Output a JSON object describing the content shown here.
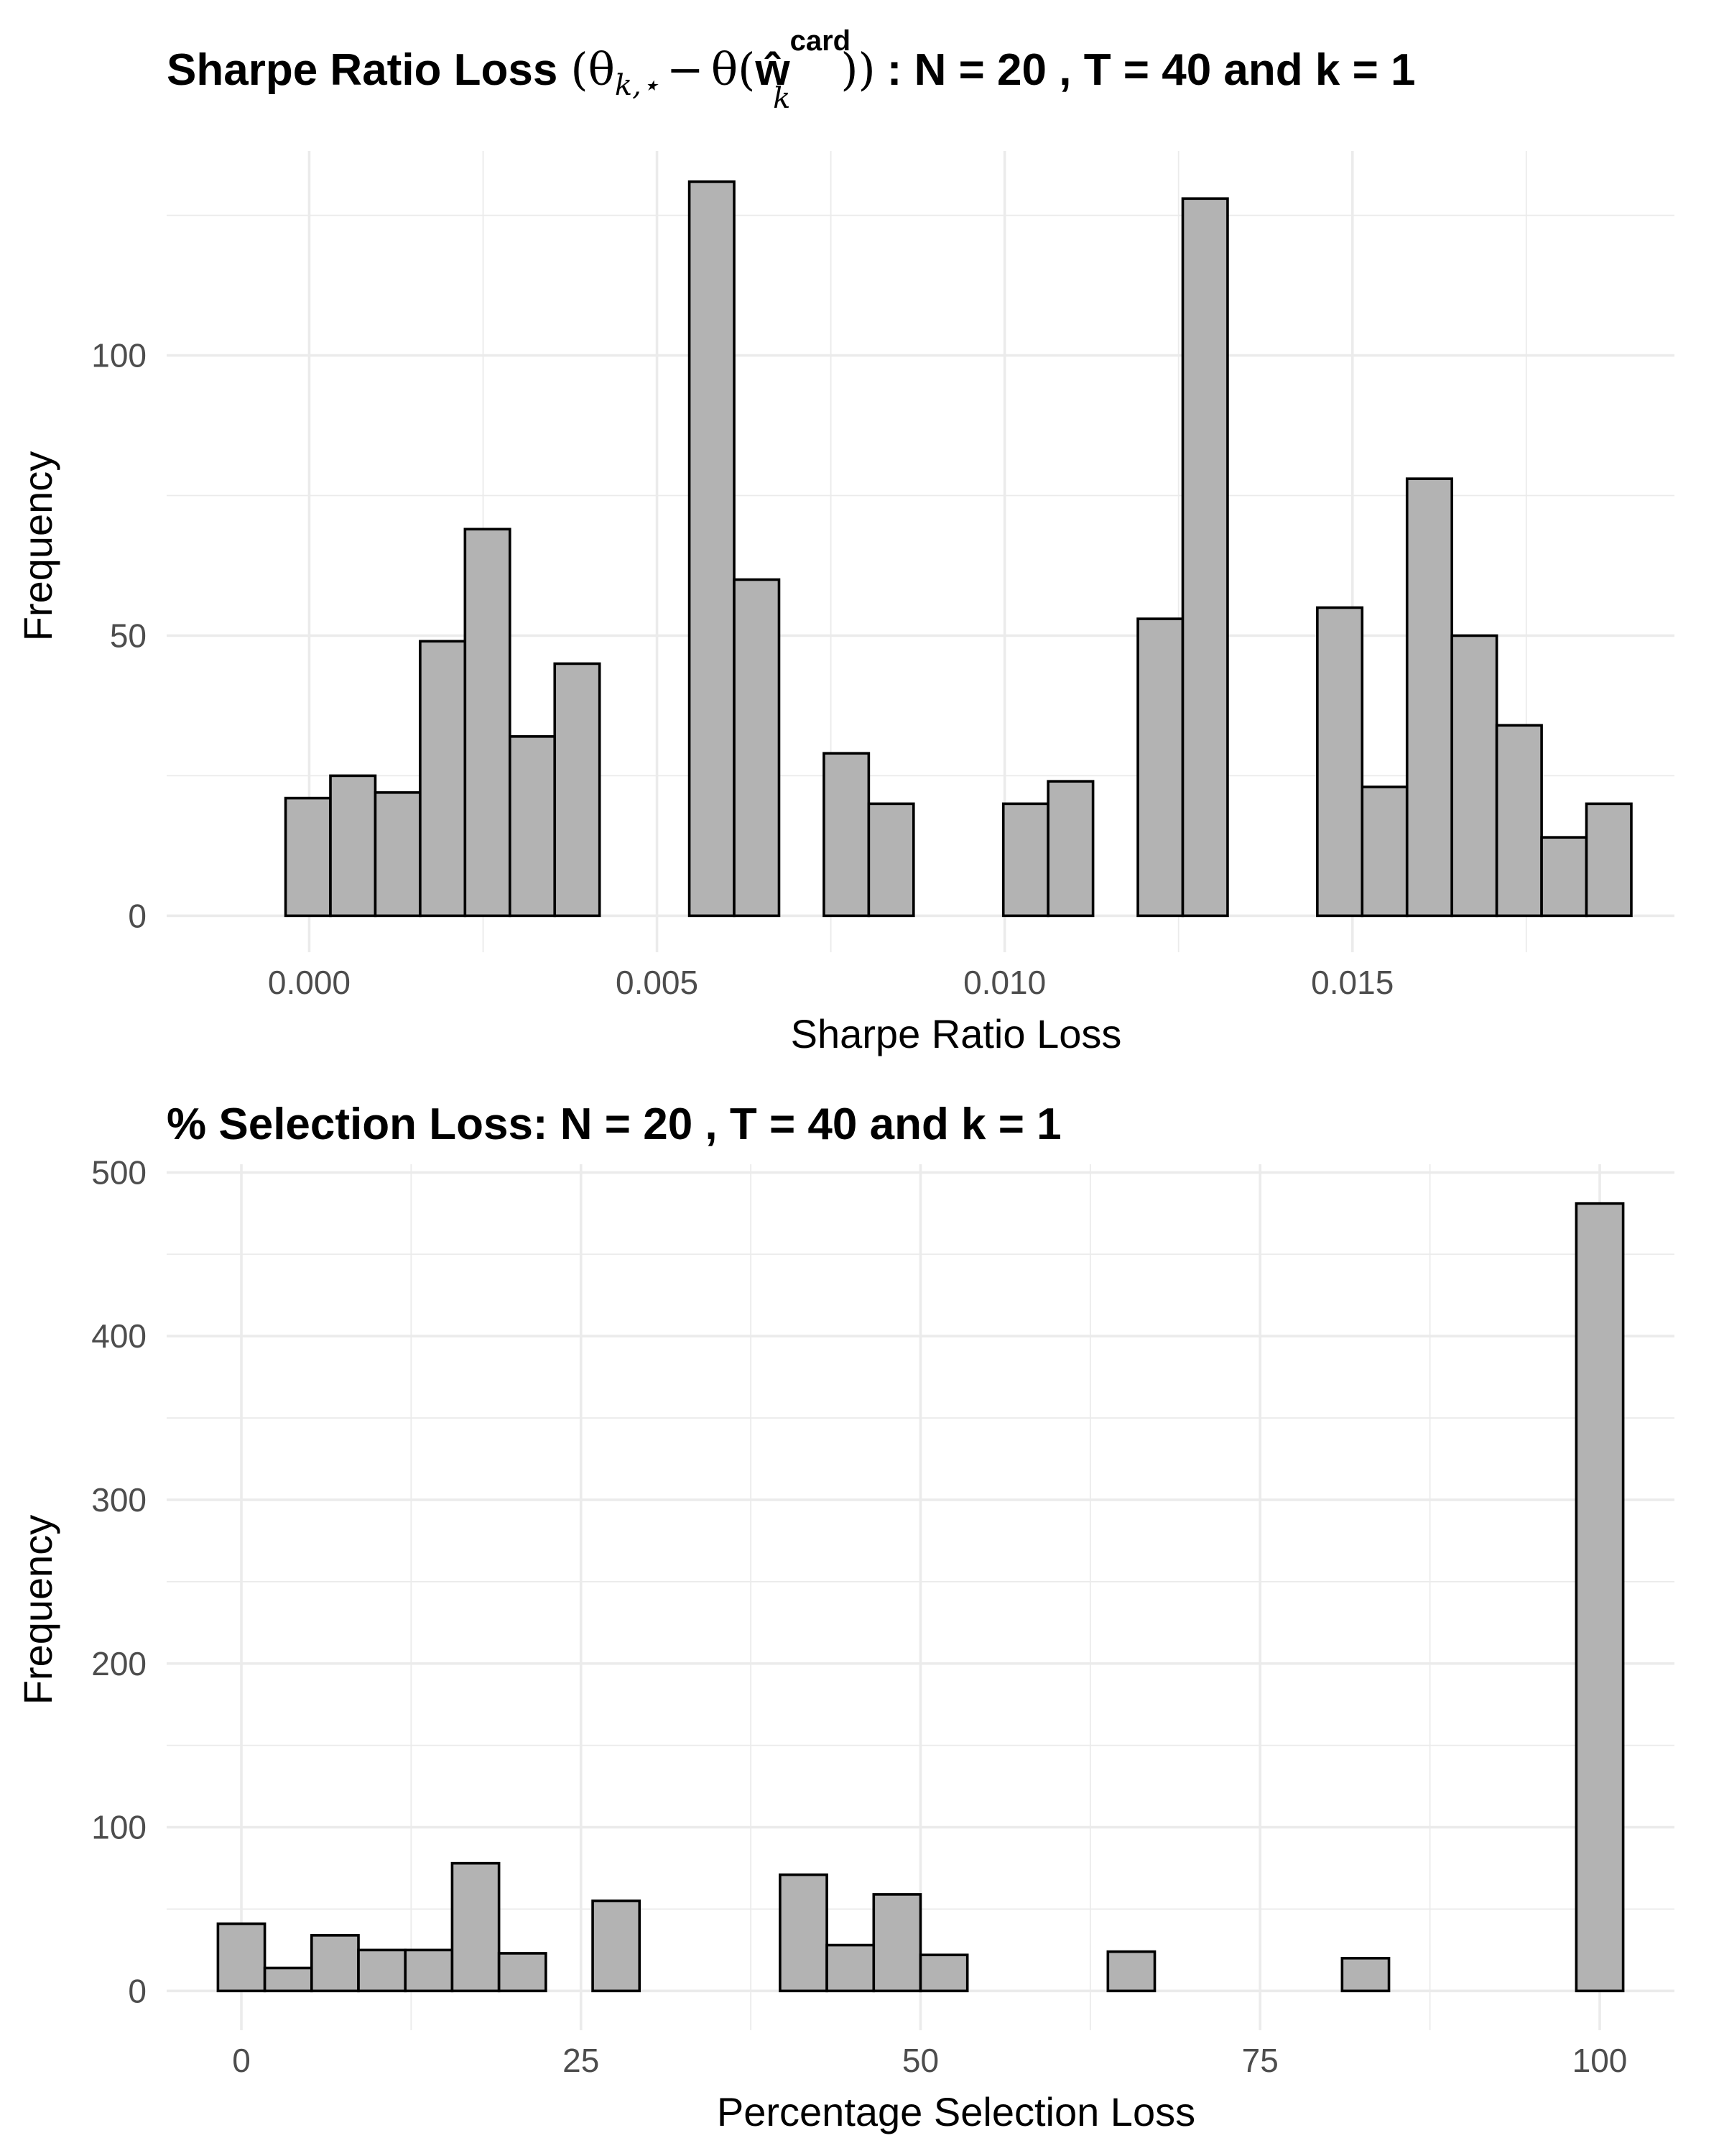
{
  "chart_data": [
    {
      "type": "bar",
      "title_parts": {
        "prefix": "Sharpe Ratio Loss",
        "theta1": "θ",
        "sub1": "k,⋆",
        "minus": "−",
        "theta2": "θ",
        "hat_w": "ŵ",
        "sup": "card",
        "sub2": "k",
        "suffix": ": N = 20 , T = 40  and k = 1"
      },
      "xlabel": "Sharpe Ratio Loss",
      "ylabel": "Frequency",
      "xlim": [
        -0.00205,
        0.01963
      ],
      "ylim": [
        -6.5,
        136.5
      ],
      "x_ticks": [
        0.0,
        0.005,
        0.01,
        0.015
      ],
      "x_tick_labels": [
        "0.000",
        "0.005",
        "0.010",
        "0.015"
      ],
      "y_ticks": [
        0,
        50,
        100
      ],
      "y_tick_labels": [
        "0",
        "50",
        "100"
      ],
      "bin_width": 0.000645,
      "bin_starts": [
        -0.00034,
        0.000305,
        0.00095,
        0.001595,
        0.00224,
        0.002885,
        0.00353,
        0.004175,
        0.00482,
        0.005465,
        0.00611,
        0.006755,
        0.0074,
        0.008045,
        0.00869,
        0.009335,
        0.00998,
        0.010625,
        0.01127,
        0.011915,
        0.01256,
        0.013205,
        0.01385,
        0.014495,
        0.01514,
        0.015785,
        0.01643,
        0.017075,
        0.01772,
        0.018365
      ],
      "values": [
        21,
        25,
        22,
        49,
        69,
        32,
        45,
        0,
        0,
        131,
        60,
        0,
        29,
        20,
        0,
        0,
        20,
        24,
        0,
        53,
        128,
        0,
        0,
        55,
        23,
        78,
        50,
        34,
        14,
        20
      ],
      "grid": true,
      "legend": "none"
    },
    {
      "type": "bar",
      "title": "% Selection Loss: N = 20 , T = 40 and k = 1",
      "xlabel": "Percentage Selection Loss",
      "ylabel": "Frequency",
      "xlim": [
        -5.5,
        105.5
      ],
      "ylim": [
        -24,
        505
      ],
      "x_ticks": [
        0,
        25,
        50,
        75,
        100
      ],
      "x_tick_labels": [
        "0",
        "25",
        "50",
        "75",
        "100"
      ],
      "y_ticks": [
        0,
        100,
        200,
        300,
        400,
        500
      ],
      "y_tick_labels": [
        "0",
        "100",
        "200",
        "300",
        "400",
        "500"
      ],
      "bin_width": 3.448,
      "bin_starts": [
        -1.724,
        1.724,
        5.172,
        8.621,
        12.069,
        15.517,
        18.966,
        22.414,
        25.862,
        29.31,
        32.759,
        36.207,
        39.655,
        43.103,
        46.552,
        50.0,
        53.448,
        56.897,
        60.345,
        63.793,
        67.241,
        70.69,
        74.138,
        77.586,
        81.034,
        84.483,
        87.931,
        91.379,
        94.828,
        98.276
      ],
      "values": [
        41,
        14,
        34,
        25,
        25,
        78,
        23,
        0,
        55,
        0,
        0,
        0,
        71,
        28,
        59,
        22,
        0,
        0,
        0,
        24,
        0,
        0,
        0,
        0,
        20,
        0,
        0,
        0,
        0,
        481
      ],
      "grid": true,
      "legend": "none"
    }
  ]
}
